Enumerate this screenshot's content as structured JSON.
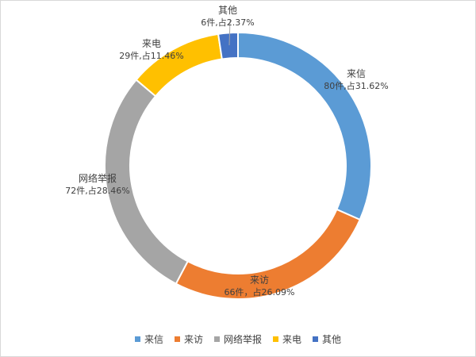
{
  "chart_data": {
    "type": "pie",
    "style": "donut",
    "categories": [
      "来信",
      "来访",
      "网络举报",
      "来电",
      "其他"
    ],
    "values": [
      80,
      66,
      72,
      29,
      6
    ],
    "percents": [
      31.62,
      26.09,
      28.46,
      11.46,
      2.37
    ],
    "colors": [
      "#5b9bd5",
      "#ed7d31",
      "#a5a5a5",
      "#ffc000",
      "#4472c4"
    ],
    "data_labels": [
      {
        "name": "来信",
        "detail": "80件,占31.62%"
      },
      {
        "name": "来访",
        "detail": "66件，占26.09%"
      },
      {
        "name": "网络举报",
        "detail": "72件,占28.46%"
      },
      {
        "name": "来电",
        "detail": "29件,占11.46%"
      },
      {
        "name": "其他",
        "detail": "6件,占2.37%"
      }
    ],
    "legend": {
      "position": "bottom"
    }
  }
}
